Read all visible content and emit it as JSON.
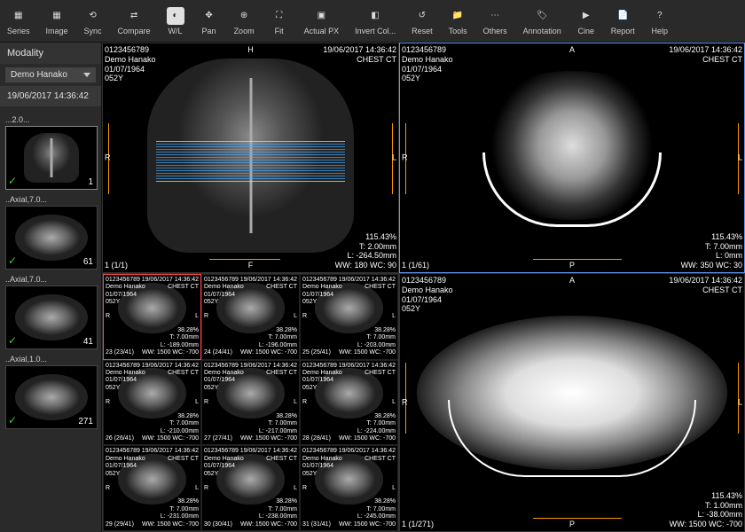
{
  "toolbar": [
    {
      "name": "series",
      "label": "Series",
      "glyph": "▦"
    },
    {
      "name": "image",
      "label": "Image",
      "glyph": "▦"
    },
    {
      "name": "sync",
      "label": "Sync",
      "glyph": "⟲"
    },
    {
      "name": "compare",
      "label": "Compare",
      "glyph": "⇄"
    },
    {
      "name": "wl",
      "label": "W/L",
      "glyph": "◐",
      "active": true
    },
    {
      "name": "pan",
      "label": "Pan",
      "glyph": "✥"
    },
    {
      "name": "zoom",
      "label": "Zoom",
      "glyph": "⊕"
    },
    {
      "name": "fit",
      "label": "Fit",
      "glyph": "⛶"
    },
    {
      "name": "actualpx",
      "label": "Actual PX",
      "glyph": "▣"
    },
    {
      "name": "invertcol",
      "label": "Invert Col...",
      "glyph": "◧"
    },
    {
      "name": "reset",
      "label": "Reset",
      "glyph": "↺"
    },
    {
      "name": "tools",
      "label": "Tools",
      "glyph": "📁"
    },
    {
      "name": "others",
      "label": "Others",
      "glyph": "⋯"
    },
    {
      "name": "annotation",
      "label": "Annotation",
      "glyph": "🏷"
    },
    {
      "name": "cine",
      "label": "Cine",
      "glyph": "▶"
    },
    {
      "name": "report",
      "label": "Report",
      "glyph": "📄"
    },
    {
      "name": "help",
      "label": "Help",
      "glyph": "?"
    }
  ],
  "sidebar": {
    "header": "Modality",
    "select": "Demo Hanako",
    "date": "19/06/2017 14:36:42",
    "thumbs": [
      {
        "label": "...2.0...",
        "num": "1",
        "kind": "xray",
        "sel": true
      },
      {
        "label": "..Axial,7.0...",
        "num": "61",
        "kind": "axial"
      },
      {
        "label": "..Axial,7.0...",
        "num": "41",
        "kind": "axial"
      },
      {
        "label": "..Axial,1.0...",
        "num": "271",
        "kind": "axial"
      }
    ]
  },
  "panes": {
    "topLeft": {
      "tl": [
        "0123456789",
        "Demo Hanako",
        "01/07/1964",
        "052Y"
      ],
      "tr": [
        "19/06/2017 14:36:42",
        "CHEST CT"
      ],
      "tc": "H",
      "bc": "F",
      "ml": "R",
      "mr": "L",
      "bl": "1 (1/1)",
      "br": [
        "115.43%",
        "T: 2.00mm",
        "L: -264.50mm",
        "WW: 180 WC: 90"
      ]
    },
    "topRight": {
      "tl": [
        "0123456789",
        "Demo Hanako",
        "01/07/1964",
        "052Y"
      ],
      "tr": [
        "19/06/2017 14:36:42",
        "CHEST CT"
      ],
      "tc": "A",
      "bc": "P",
      "ml": "R",
      "mr": "L",
      "bl": "1 (1/61)",
      "br": [
        "115.43%",
        "T: 7.00mm",
        "L: 0mm",
        "WW: 350 WC: 30"
      ]
    },
    "bottomRight": {
      "tl": [
        "0123456789",
        "Demo Hanako",
        "01/07/1964",
        "052Y"
      ],
      "tr": [
        "19/06/2017 14:36:42",
        "CHEST CT"
      ],
      "tc": "A",
      "bc": "P",
      "ml": "R",
      "mr": "L",
      "bl": "1 (1/271)",
      "br": [
        "115.43%",
        "T: 1.00mm",
        "L: -38.00mm",
        "WW: 1500 WC: -700"
      ]
    },
    "gridCommon": {
      "tl": [
        "0123456789",
        "Demo Hanako",
        "01/07/1964",
        "052Y"
      ],
      "trDate": "19/06/2017 14:36:42",
      "trStudy": "CHEST CT",
      "ml": "R",
      "mr": "L",
      "wwwc": "WW: 1500 WC: -700"
    },
    "gridCells": [
      {
        "idx": "23 (23/41)",
        "zoom": "38.28%",
        "t": "T: 7.00mm",
        "l": "L: -189.00mm",
        "sel": true
      },
      {
        "idx": "24 (24/41)",
        "zoom": "38.28%",
        "t": "T: 7.00mm",
        "l": "L: -196.00mm"
      },
      {
        "idx": "25 (25/41)",
        "zoom": "38.28%",
        "t": "T: 7.00mm",
        "l": "L: -203.00mm"
      },
      {
        "idx": "26 (26/41)",
        "zoom": "38.28%",
        "t": "T: 7.00mm",
        "l": "L: -210.00mm"
      },
      {
        "idx": "27 (27/41)",
        "zoom": "38.28%",
        "t": "T: 7.00mm",
        "l": "L: -217.00mm"
      },
      {
        "idx": "28 (28/41)",
        "zoom": "38.28%",
        "t": "T: 7.00mm",
        "l": "L: -224.00mm"
      },
      {
        "idx": "29 (29/41)",
        "zoom": "38.28%",
        "t": "T: 7.00mm",
        "l": "L: -231.00mm"
      },
      {
        "idx": "30 (30/41)",
        "zoom": "38.28%",
        "t": "T: 7.00mm",
        "l": "L: -238.00mm"
      },
      {
        "idx": "31 (31/41)",
        "zoom": "38.28%",
        "t": "T: 7.00mm",
        "l": "L: -245.00mm"
      }
    ]
  },
  "colors": {
    "accent": "#ff9500",
    "scanline": "#4af",
    "select": "#6495ed",
    "cellSelect": "#f44"
  }
}
